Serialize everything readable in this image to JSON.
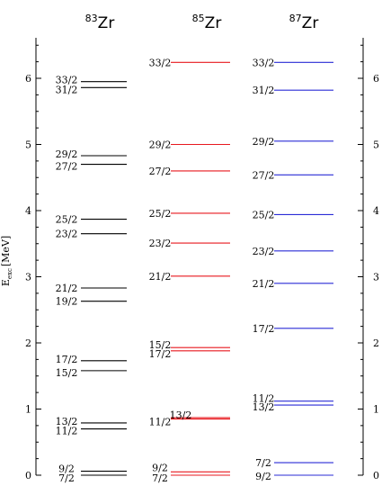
{
  "chart_data": {
    "type": "level-scheme",
    "ylabel": "E",
    "ylabel_subscript": "exc",
    "ylabel_unit": "[MeV]",
    "ylim": [
      0,
      6.6
    ],
    "ytick_labels": [
      "0",
      "1",
      "2",
      "3",
      "4",
      "5",
      "6"
    ],
    "columns": [
      {
        "nucleus_mass": "83",
        "nucleus_symbol": "Zr",
        "color": "#000000",
        "levels": [
          {
            "spin": "7/2",
            "energy": 0.0
          },
          {
            "spin": "9/2",
            "energy": 0.06
          },
          {
            "spin": "11/2",
            "energy": 0.7
          },
          {
            "spin": "13/2",
            "energy": 0.79
          },
          {
            "spin": "15/2",
            "energy": 1.58
          },
          {
            "spin": "17/2",
            "energy": 1.73
          },
          {
            "spin": "19/2",
            "energy": 2.63
          },
          {
            "spin": "21/2",
            "energy": 2.83
          },
          {
            "spin": "23/2",
            "energy": 3.65
          },
          {
            "spin": "25/2",
            "energy": 3.87
          },
          {
            "spin": "27/2",
            "energy": 4.7
          },
          {
            "spin": "29/2",
            "energy": 4.83
          },
          {
            "spin": "31/2",
            "energy": 5.86
          },
          {
            "spin": "33/2",
            "energy": 5.95
          }
        ]
      },
      {
        "nucleus_mass": "85",
        "nucleus_symbol": "Zr",
        "color": "#e8191f",
        "levels": [
          {
            "spin": "7/2",
            "energy": 0.0
          },
          {
            "spin": "9/2",
            "energy": 0.05
          },
          {
            "spin": "11/2",
            "energy": 0.85
          },
          {
            "spin": "13/2",
            "energy": 0.87
          },
          {
            "spin": "17/2",
            "energy": 1.88
          },
          {
            "spin": "15/2",
            "energy": 1.93
          },
          {
            "spin": "21/2",
            "energy": 3.01
          },
          {
            "spin": "23/2",
            "energy": 3.51
          },
          {
            "spin": "25/2",
            "energy": 3.96
          },
          {
            "spin": "27/2",
            "energy": 4.6
          },
          {
            "spin": "29/2",
            "energy": 5.0
          },
          {
            "spin": "33/2",
            "energy": 6.24
          }
        ]
      },
      {
        "nucleus_mass": "87",
        "nucleus_symbol": "Zr",
        "color": "#2a2bd6",
        "levels": [
          {
            "spin": "9/2",
            "energy": 0.0
          },
          {
            "spin": "7/2",
            "energy": 0.19
          },
          {
            "spin": "13/2",
            "energy": 1.06
          },
          {
            "spin": "11/2",
            "energy": 1.12
          },
          {
            "spin": "17/2",
            "energy": 2.22
          },
          {
            "spin": "21/2",
            "energy": 2.9
          },
          {
            "spin": "23/2",
            "energy": 3.39
          },
          {
            "spin": "25/2",
            "energy": 3.94
          },
          {
            "spin": "27/2",
            "energy": 4.54
          },
          {
            "spin": "29/2",
            "energy": 5.05
          },
          {
            "spin": "31/2",
            "energy": 5.82
          },
          {
            "spin": "33/2",
            "energy": 6.24
          }
        ]
      }
    ]
  }
}
